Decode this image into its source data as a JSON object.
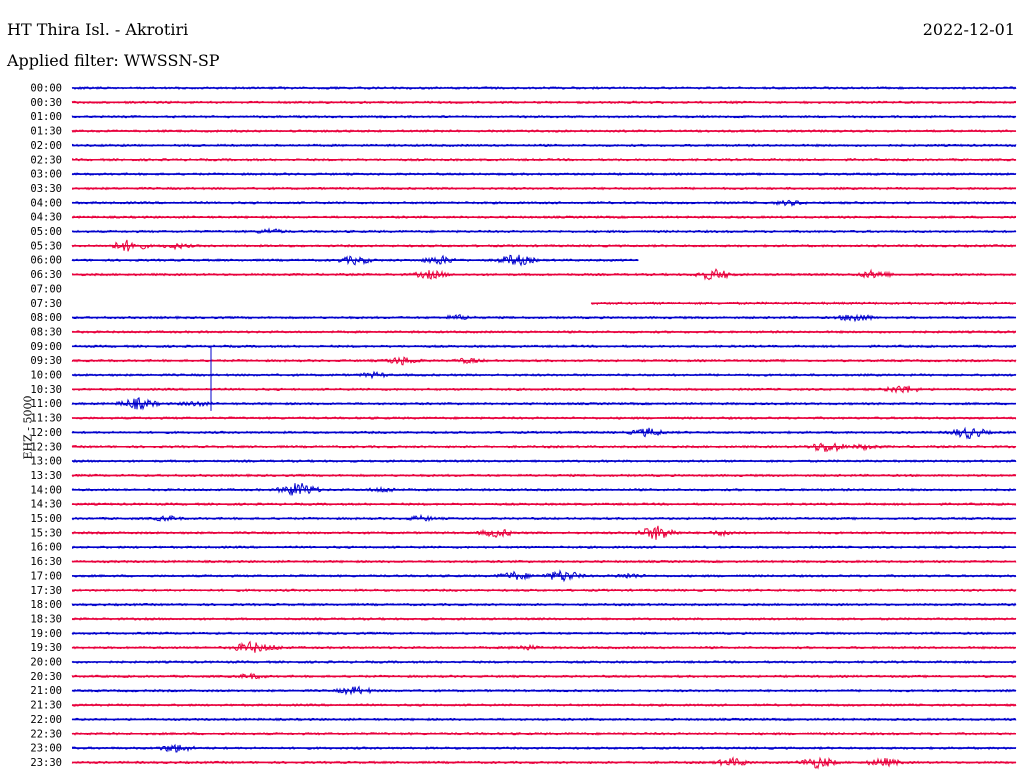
{
  "header": {
    "station": "HT Thira Isl. - Akrotiri",
    "date": "2022-12-01",
    "filter": "Applied filter: WWSSN-SP",
    "channel": "EHZ - 5000"
  },
  "colors": {
    "even": "#0000cc",
    "odd": "#e8003c"
  },
  "chart_data": {
    "type": "line",
    "title": "HT Thira Isl. - Akrotiri",
    "ylabel": "EHZ - 5000",
    "tick_labels": [
      "00:00",
      "00:30",
      "01:00",
      "01:30",
      "02:00",
      "02:30",
      "03:00",
      "03:30",
      "04:00",
      "04:30",
      "05:00",
      "05:30",
      "06:00",
      "06:30",
      "07:00",
      "07:30",
      "08:00",
      "08:30",
      "09:00",
      "09:30",
      "10:00",
      "10:30",
      "11:00",
      "11:30",
      "12:00",
      "12:30",
      "13:00",
      "13:30",
      "14:00",
      "14:30",
      "15:00",
      "15:30",
      "16:00",
      "16:30",
      "17:00",
      "17:30",
      "18:00",
      "18:30",
      "19:00",
      "19:30",
      "20:00",
      "20:30",
      "21:00",
      "21:30",
      "22:00",
      "22:30",
      "23:00",
      "23:30"
    ],
    "series": [
      {
        "x_min": 0.0,
        "x_max": 1.0,
        "events": []
      },
      {
        "x_min": 0.0,
        "x_max": 1.0,
        "events": []
      },
      {
        "x_min": 0.0,
        "x_max": 1.0,
        "events": []
      },
      {
        "x_min": 0.0,
        "x_max": 1.0,
        "events": []
      },
      {
        "x_min": 0.0,
        "x_max": 1.0,
        "events": []
      },
      {
        "x_min": 0.0,
        "x_max": 1.0,
        "events": []
      },
      {
        "x_min": 0.0,
        "x_max": 1.0,
        "events": []
      },
      {
        "x_min": 0.0,
        "x_max": 1.0,
        "events": []
      },
      {
        "x_min": 0.0,
        "x_max": 1.0,
        "events": [
          [
            0.76,
            2
          ]
        ]
      },
      {
        "x_min": 0.0,
        "x_max": 1.0,
        "events": []
      },
      {
        "x_min": 0.0,
        "x_max": 1.0,
        "events": [
          [
            0.21,
            2
          ]
        ]
      },
      {
        "x_min": 0.0,
        "x_max": 1.0,
        "events": [
          [
            0.06,
            4
          ],
          [
            0.11,
            2
          ]
        ]
      },
      {
        "x_min": 0.0,
        "x_max": 0.6,
        "events": [
          [
            0.3,
            3
          ],
          [
            0.39,
            3
          ],
          [
            0.47,
            4
          ]
        ]
      },
      {
        "x_min": 0.0,
        "x_max": 1.0,
        "events": [
          [
            0.38,
            3
          ],
          [
            0.68,
            4
          ],
          [
            0.85,
            3
          ]
        ]
      },
      {
        "x_min": 0.0,
        "x_max": 0.0,
        "events": []
      },
      {
        "x_min": 0.55,
        "x_max": 1.0,
        "events": []
      },
      {
        "x_min": 0.0,
        "x_max": 1.0,
        "events": [
          [
            0.41,
            2
          ],
          [
            0.83,
            3
          ]
        ]
      },
      {
        "x_min": 0.0,
        "x_max": 1.0,
        "events": []
      },
      {
        "x_min": 0.0,
        "x_max": 1.0,
        "events": []
      },
      {
        "x_min": 0.0,
        "x_max": 1.0,
        "events": [
          [
            0.35,
            3
          ],
          [
            0.42,
            2
          ]
        ]
      },
      {
        "x_min": 0.0,
        "x_max": 1.0,
        "events": [
          [
            0.32,
            2
          ]
        ]
      },
      {
        "x_min": 0.0,
        "x_max": 1.0,
        "events": [
          [
            0.88,
            3
          ]
        ]
      },
      {
        "x_min": 0.0,
        "x_max": 1.0,
        "events": [
          [
            0.07,
            4
          ],
          [
            0.13,
            2
          ]
        ]
      },
      {
        "x_min": 0.0,
        "x_max": 1.0,
        "events": []
      },
      {
        "x_min": 0.0,
        "x_max": 1.0,
        "events": [
          [
            0.61,
            3
          ],
          [
            0.95,
            4
          ]
        ]
      },
      {
        "x_min": 0.0,
        "x_max": 1.0,
        "events": [
          [
            0.8,
            4
          ],
          [
            0.84,
            2
          ]
        ]
      },
      {
        "x_min": 0.0,
        "x_max": 1.0,
        "events": []
      },
      {
        "x_min": 0.0,
        "x_max": 1.0,
        "events": []
      },
      {
        "x_min": 0.0,
        "x_max": 1.0,
        "events": [
          [
            0.24,
            5
          ],
          [
            0.33,
            2
          ]
        ]
      },
      {
        "x_min": 0.0,
        "x_max": 1.0,
        "events": []
      },
      {
        "x_min": 0.0,
        "x_max": 1.0,
        "events": [
          [
            0.1,
            2
          ],
          [
            0.37,
            2
          ]
        ]
      },
      {
        "x_min": 0.0,
        "x_max": 1.0,
        "events": [
          [
            0.45,
            3
          ],
          [
            0.62,
            5
          ],
          [
            0.69,
            2
          ]
        ]
      },
      {
        "x_min": 0.0,
        "x_max": 1.0,
        "events": []
      },
      {
        "x_min": 0.0,
        "x_max": 1.0,
        "events": []
      },
      {
        "x_min": 0.0,
        "x_max": 1.0,
        "events": [
          [
            0.47,
            3
          ],
          [
            0.52,
            4
          ],
          [
            0.59,
            2
          ]
        ]
      },
      {
        "x_min": 0.0,
        "x_max": 1.0,
        "events": []
      },
      {
        "x_min": 0.0,
        "x_max": 1.0,
        "events": []
      },
      {
        "x_min": 0.0,
        "x_max": 1.0,
        "events": []
      },
      {
        "x_min": 0.0,
        "x_max": 1.0,
        "events": []
      },
      {
        "x_min": 0.0,
        "x_max": 1.0,
        "events": [
          [
            0.19,
            4
          ],
          [
            0.21,
            2
          ],
          [
            0.48,
            2
          ]
        ]
      },
      {
        "x_min": 0.0,
        "x_max": 1.0,
        "events": []
      },
      {
        "x_min": 0.0,
        "x_max": 1.0,
        "events": [
          [
            0.19,
            2
          ]
        ]
      },
      {
        "x_min": 0.0,
        "x_max": 1.0,
        "events": [
          [
            0.3,
            3
          ]
        ]
      },
      {
        "x_min": 0.0,
        "x_max": 1.0,
        "events": []
      },
      {
        "x_min": 0.0,
        "x_max": 1.0,
        "events": []
      },
      {
        "x_min": 0.0,
        "x_max": 1.0,
        "events": []
      },
      {
        "x_min": 0.0,
        "x_max": 1.0,
        "events": [
          [
            0.11,
            3
          ]
        ]
      },
      {
        "x_min": 0.0,
        "x_max": 1.0,
        "events": [
          [
            0.7,
            3
          ],
          [
            0.79,
            4
          ],
          [
            0.86,
            3
          ]
        ]
      }
    ]
  }
}
